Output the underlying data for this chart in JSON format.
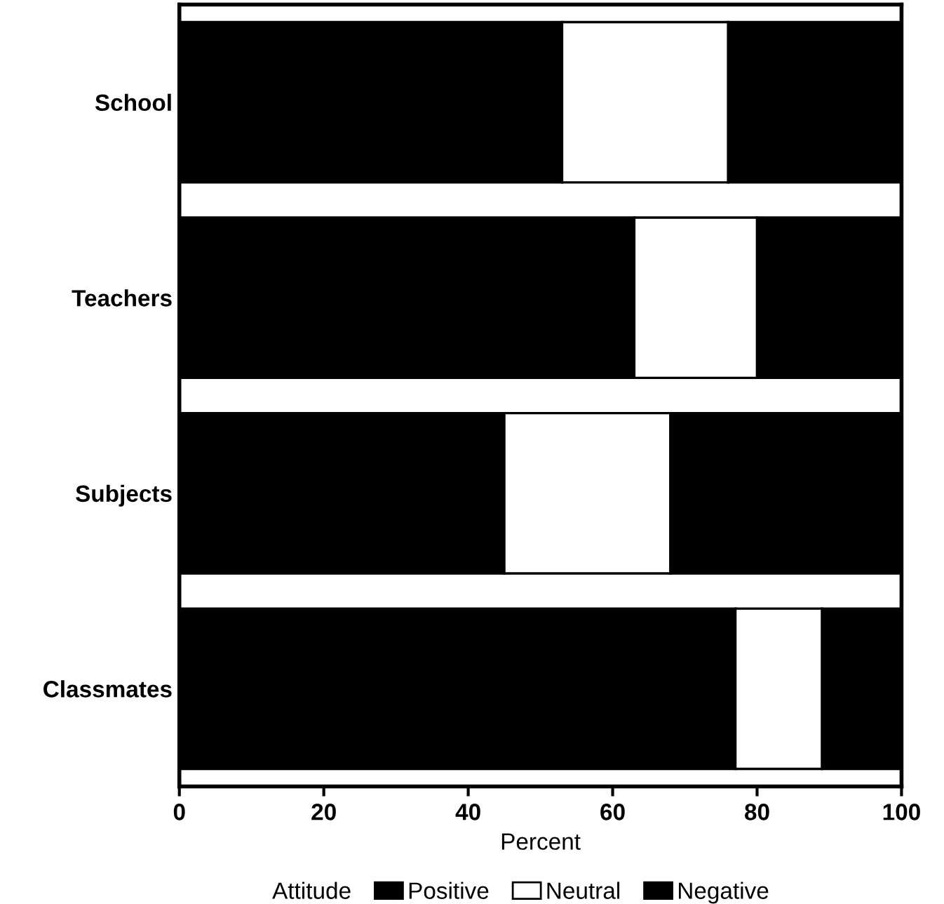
{
  "chart_data": {
    "type": "bar",
    "orientation": "horizontal",
    "stacked": true,
    "xlabel": "Percent",
    "legend_title": "Attitude",
    "legend": "bottom",
    "categories": [
      "School",
      "Teachers",
      "Subjects",
      "Classmates"
    ],
    "series": [
      {
        "name": "Positive",
        "color": "#000000",
        "values": [
          53,
          63,
          45,
          77
        ]
      },
      {
        "name": "Neutral",
        "color": "#ffffff",
        "values": [
          23,
          17,
          23,
          12
        ]
      },
      {
        "name": "Negative",
        "color": "#000000",
        "values": [
          24,
          20,
          32,
          11
        ]
      }
    ],
    "xlim": [
      0,
      100
    ],
    "xticks": [
      0,
      20,
      40,
      60,
      80,
      100
    ],
    "grid": false
  }
}
